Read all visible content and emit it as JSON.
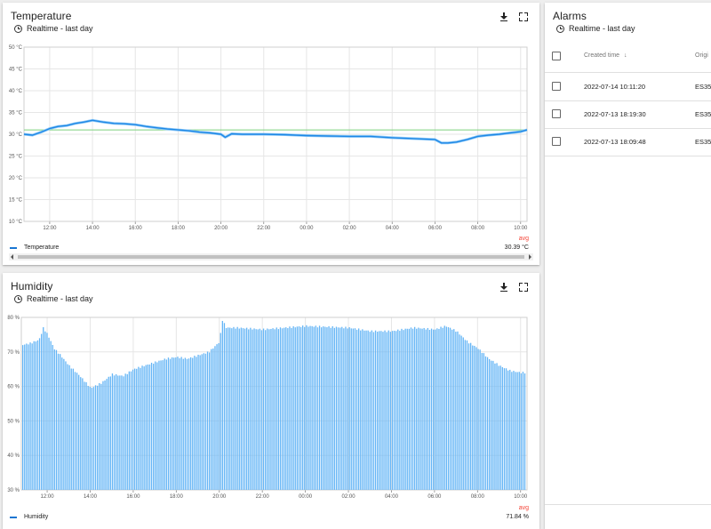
{
  "temperature_card": {
    "title": "Temperature",
    "subtitle": "Realtime - last day",
    "legend_label": "Temperature",
    "avg_header": "avg",
    "avg_value": "30.39 °C",
    "chart_data": {
      "type": "line",
      "title": "",
      "xlabel": "",
      "ylabel": "",
      "x_ticks": [
        "12:00",
        "14:00",
        "16:00",
        "18:00",
        "20:00",
        "22:00",
        "00:00",
        "02:00",
        "04:00",
        "06:00",
        "08:00",
        "10:00"
      ],
      "y_ticks": [
        "10 °C",
        "15 °C",
        "20 °C",
        "25 °C",
        "30 °C",
        "35 °C",
        "40 °C",
        "45 °C",
        "50 °C"
      ],
      "ylim": [
        10,
        50
      ],
      "xlim": [
        10.8,
        34.3
      ],
      "threshold": 31,
      "series": [
        {
          "name": "Temperature",
          "color": "#1e88e5",
          "x": [
            10.8,
            11.2,
            11.6,
            12.0,
            12.4,
            12.8,
            13.2,
            13.6,
            14.0,
            14.5,
            15.0,
            15.5,
            16.0,
            16.5,
            17.0,
            17.5,
            18.0,
            18.5,
            19.0,
            19.5,
            20.0,
            20.2,
            20.5,
            21.0,
            22.0,
            23.0,
            24.0,
            25.0,
            26.0,
            27.0,
            28.0,
            29.0,
            30.0,
            30.3,
            30.6,
            31.0,
            31.5,
            32.0,
            32.5,
            33.0,
            33.5,
            34.0,
            34.3
          ],
          "y": [
            30.0,
            29.8,
            30.5,
            31.3,
            31.8,
            32.0,
            32.5,
            32.8,
            33.2,
            32.8,
            32.5,
            32.4,
            32.2,
            31.8,
            31.5,
            31.2,
            31.0,
            30.8,
            30.5,
            30.3,
            30.0,
            29.3,
            30.1,
            30.0,
            30.0,
            29.9,
            29.7,
            29.6,
            29.5,
            29.5,
            29.2,
            29.0,
            28.8,
            28.0,
            28.0,
            28.2,
            28.8,
            29.5,
            29.8,
            30.0,
            30.3,
            30.6,
            31.0
          ]
        }
      ]
    }
  },
  "humidity_card": {
    "title": "Humidity",
    "subtitle": "Realtime - last day",
    "legend_label": "Humidity",
    "avg_header": "avg",
    "avg_value": "71.84 %",
    "chart_data": {
      "type": "bar",
      "title": "",
      "xlabel": "",
      "ylabel": "",
      "x_ticks": [
        "12:00",
        "14:00",
        "16:00",
        "18:00",
        "20:00",
        "22:00",
        "00:00",
        "02:00",
        "04:00",
        "06:00",
        "08:00",
        "10:00"
      ],
      "y_ticks": [
        "30 %",
        "40 %",
        "50 %",
        "60 %",
        "70 %",
        "80 %"
      ],
      "ylim": [
        30,
        80
      ],
      "xlim": [
        10.8,
        34.3
      ],
      "series": [
        {
          "name": "Humidity",
          "color": "#64b5f6",
          "x": [
            10.8,
            11.2,
            11.6,
            11.8,
            12.0,
            12.3,
            12.6,
            13.0,
            13.5,
            14.0,
            14.5,
            15.0,
            15.5,
            16.0,
            16.5,
            17.0,
            17.5,
            18.0,
            18.5,
            19.0,
            19.5,
            20.0,
            20.1,
            20.3,
            20.8,
            22.0,
            24.0,
            26.0,
            27.0,
            28.0,
            29.0,
            30.0,
            30.5,
            31.0,
            31.5,
            32.0,
            32.5,
            33.0,
            33.5,
            34.0,
            34.3
          ],
          "y": [
            72.0,
            72.5,
            73.5,
            77.0,
            75.0,
            71.0,
            69.0,
            66.0,
            63.0,
            59.5,
            61.0,
            63.5,
            63.0,
            65.0,
            66.0,
            67.0,
            68.0,
            68.5,
            68.0,
            69.0,
            70.0,
            73.0,
            79.5,
            77.0,
            77.0,
            76.5,
            77.5,
            77.0,
            76.0,
            76.0,
            77.0,
            76.5,
            77.5,
            76.0,
            73.0,
            71.0,
            68.0,
            66.0,
            64.5,
            64.0,
            64.0
          ]
        }
      ]
    }
  },
  "alarms_card": {
    "title": "Alarms",
    "subtitle": "Realtime - last day",
    "columns": {
      "created_time": "Created time",
      "originator": "Origi"
    },
    "rows": [
      {
        "created_time": "2022-07-14 10:11:20",
        "originator": "ES35"
      },
      {
        "created_time": "2022-07-13 18:19:30",
        "originator": "ES35"
      },
      {
        "created_time": "2022-07-13 18:09:48",
        "originator": "ES35"
      }
    ]
  }
}
